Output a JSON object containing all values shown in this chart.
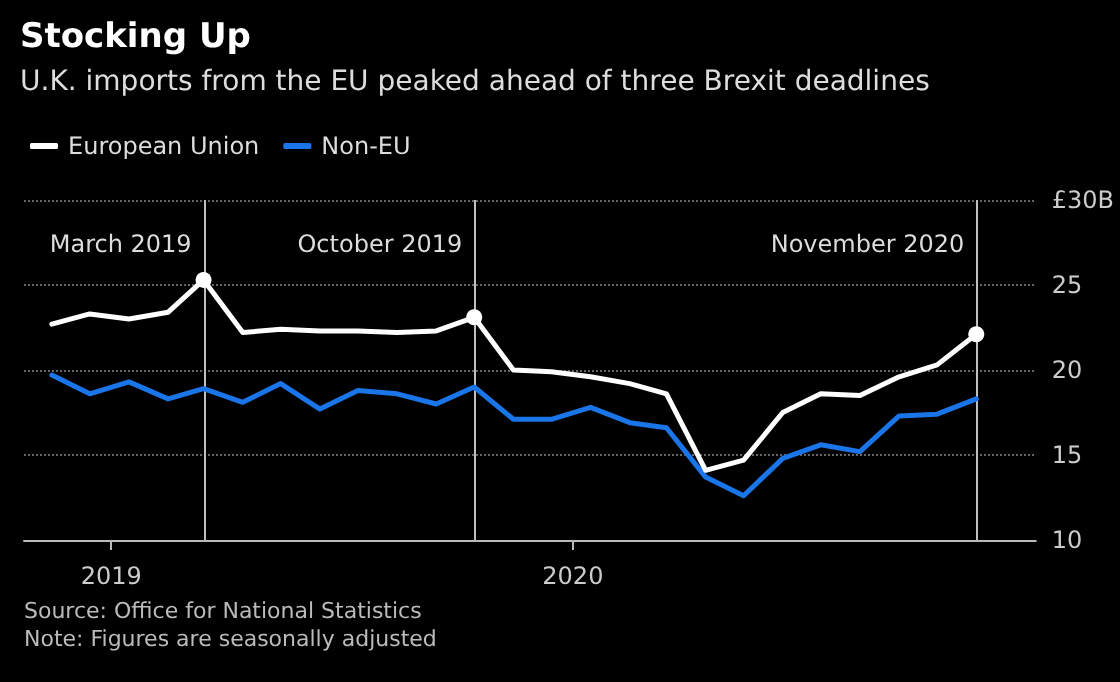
{
  "chart_data": {
    "type": "line",
    "title": "Stocking Up",
    "subtitle": "U.K. imports from the EU peaked ahead of three Brexit deadlines",
    "x": [
      "2018-11-15",
      "2018-12-15",
      "2019-01-15",
      "2019-02-15",
      "2019-03-15",
      "2019-04-15",
      "2019-05-15",
      "2019-06-15",
      "2019-07-15",
      "2019-08-15",
      "2019-09-15",
      "2019-10-15",
      "2019-11-15",
      "2019-12-15",
      "2020-01-15",
      "2020-02-15",
      "2020-03-15",
      "2020-04-15",
      "2020-05-15",
      "2020-06-15",
      "2020-07-15",
      "2020-08-15",
      "2020-09-15",
      "2020-10-15",
      "2020-11-15"
    ],
    "series": [
      {
        "name": "European Union",
        "color": "#ffffff",
        "values": [
          22.7,
          23.3,
          23.0,
          23.4,
          25.3,
          22.2,
          22.4,
          22.3,
          22.3,
          22.2,
          22.3,
          23.1,
          20.0,
          19.9,
          19.6,
          19.2,
          18.6,
          14.1,
          14.7,
          17.5,
          18.6,
          18.5,
          19.6,
          20.3,
          22.1
        ]
      },
      {
        "name": "Non-EU",
        "color": "#1a75e8",
        "values": [
          19.7,
          18.6,
          19.3,
          18.3,
          18.9,
          18.1,
          19.2,
          17.7,
          18.8,
          18.6,
          18.0,
          19.0,
          17.1,
          17.1,
          17.8,
          16.9,
          16.6,
          13.7,
          12.6,
          14.8,
          15.6,
          15.2,
          17.3,
          17.4,
          18.3
        ]
      }
    ],
    "xlim": [
      "2018-10-24",
      "2021-01-01"
    ],
    "xticks": [
      {
        "value": "2019-01-01",
        "label": "2019"
      },
      {
        "value": "2020-01-01",
        "label": "2020"
      }
    ],
    "ylim": [
      10,
      30
    ],
    "yticks": [
      10,
      15,
      20,
      25,
      {
        "value": 30,
        "label": "£30B"
      }
    ],
    "ref_lines": [
      {
        "axis": "x",
        "value": "2019-03-15",
        "label": "March 2019",
        "color": "#bfbfbf"
      },
      {
        "axis": "x",
        "value": "2019-10-15",
        "label": "October 2019",
        "color": "#bfbfbf"
      },
      {
        "axis": "x",
        "value": "2020-11-15",
        "label": "November 2020",
        "color": "#bfbfbf"
      }
    ],
    "grid": "y",
    "legend": "top left",
    "marker": "none",
    "line_style": "solid",
    "annotations": [
      "Source: Office for National Statistics",
      "Note: Figures are seasonally adjusted"
    ]
  }
}
